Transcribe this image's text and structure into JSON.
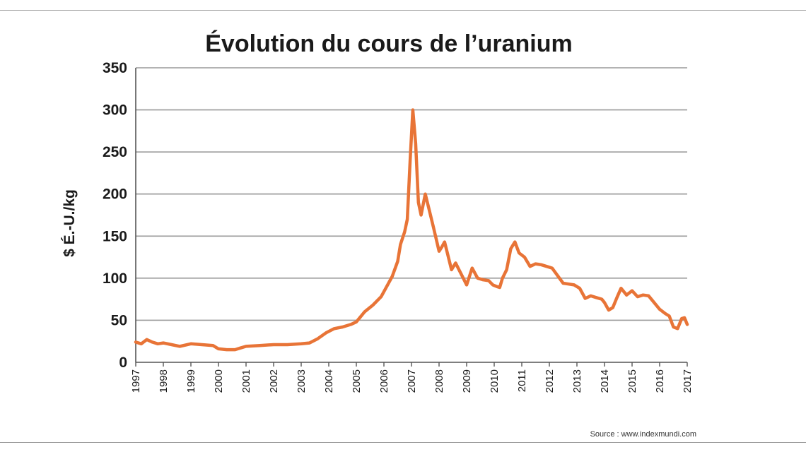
{
  "chart_data": {
    "type": "line",
    "title": "Évolution du cours de l’uranium",
    "ylabel": "$ É.-U./kg",
    "xlabel": "",
    "source": "Source : www.indexmundi.com",
    "ylim": [
      0,
      350
    ],
    "xlim": [
      1997,
      2017
    ],
    "yticks": [
      0,
      50,
      100,
      150,
      200,
      250,
      300,
      350
    ],
    "xticks": [
      "1997",
      "1998",
      "1999",
      "2000",
      "2001",
      "2002",
      "2003",
      "2004",
      "2005",
      "2006",
      "2007",
      "2008",
      "2009",
      "2010",
      "2011",
      "2012",
      "2013",
      "2014",
      "2015",
      "2016",
      "2017"
    ],
    "grid": true,
    "line_color": "#e87437",
    "series": [
      {
        "x": [
          1997.0,
          1997.2,
          1997.4,
          1997.6,
          1997.8,
          1998.0,
          1998.3,
          1998.6,
          1999.0,
          1999.4,
          1999.8,
          2000.0,
          2000.3,
          2000.6,
          2000.8,
          2001.0,
          2001.5,
          2002.0,
          2002.5,
          2003.0,
          2003.3,
          2003.6,
          2003.9,
          2004.2,
          2004.5,
          2004.8,
          2005.0,
          2005.3,
          2005.6,
          2005.9,
          2006.1,
          2006.3,
          2006.5,
          2006.6,
          2006.75,
          2006.85,
          2006.95,
          2007.05,
          2007.15,
          2007.25,
          2007.35,
          2007.5,
          2007.65,
          2007.8,
          2008.0,
          2008.1,
          2008.2,
          2008.3,
          2008.45,
          2008.6,
          2008.8,
          2009.0,
          2009.2,
          2009.4,
          2009.6,
          2009.8,
          2009.95,
          2010.1,
          2010.2,
          2010.3,
          2010.45,
          2010.6,
          2010.75,
          2010.9,
          2011.1,
          2011.3,
          2011.5,
          2011.7,
          2011.9,
          2012.1,
          2012.3,
          2012.5,
          2012.7,
          2012.9,
          2013.1,
          2013.3,
          2013.5,
          2013.7,
          2013.9,
          2014.0,
          2014.15,
          2014.3,
          2014.45,
          2014.6,
          2014.8,
          2015.0,
          2015.2,
          2015.4,
          2015.6,
          2015.8,
          2016.0,
          2016.2,
          2016.35,
          2016.5,
          2016.65,
          2016.8,
          2016.9,
          2017.0
        ],
        "y": [
          24,
          22,
          27,
          24,
          22,
          23,
          21,
          19,
          22,
          21,
          20,
          16,
          15,
          15,
          17,
          19,
          20,
          21,
          21,
          22,
          23,
          28,
          35,
          40,
          42,
          45,
          48,
          60,
          68,
          78,
          90,
          102,
          120,
          140,
          155,
          170,
          240,
          300,
          260,
          190,
          175,
          200,
          180,
          160,
          132,
          137,
          143,
          130,
          110,
          118,
          105,
          92,
          112,
          100,
          98,
          97,
          92,
          90,
          89,
          100,
          110,
          135,
          143,
          130,
          125,
          114,
          117,
          116,
          114,
          112,
          103,
          94,
          93,
          92,
          88,
          76,
          79,
          77,
          75,
          71,
          62,
          65,
          77,
          88,
          80,
          85,
          78,
          80,
          79,
          71,
          63,
          58,
          55,
          42,
          40,
          52,
          53,
          45
        ]
      }
    ]
  }
}
